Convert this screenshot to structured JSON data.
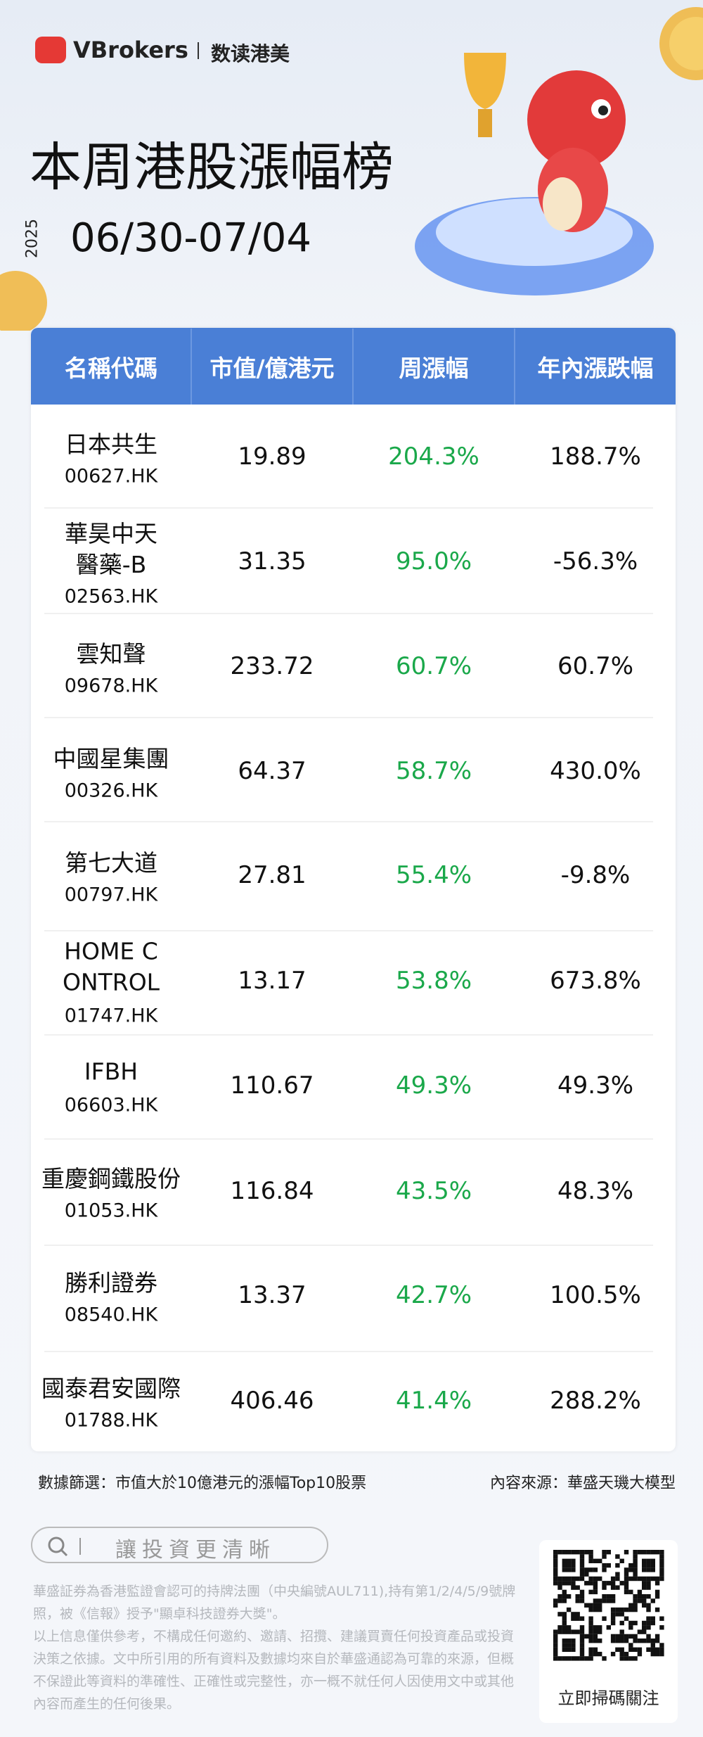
{
  "header": {
    "brand": "VBrokers",
    "brand_sub": "数读港美",
    "title": "本周港股漲幅榜",
    "year": "2025",
    "date_range": "06/30-07/04"
  },
  "table": {
    "columns": [
      "名稱代碼",
      "市值/億港元",
      "周漲幅",
      "年內漲跌幅"
    ],
    "rows": [
      {
        "name_lines": [
          "日本共生"
        ],
        "code": "00627.HK",
        "market_cap": "19.89",
        "weekly": "204.3%",
        "ytd": "188.7%"
      },
      {
        "name_lines": [
          "華昊中天",
          "醫藥-B"
        ],
        "code": "02563.HK",
        "market_cap": "31.35",
        "weekly": "95.0%",
        "ytd": "-56.3%"
      },
      {
        "name_lines": [
          "雲知聲"
        ],
        "code": "09678.HK",
        "market_cap": "233.72",
        "weekly": "60.7%",
        "ytd": "60.7%"
      },
      {
        "name_lines": [
          "中國星集團"
        ],
        "code": "00326.HK",
        "market_cap": "64.37",
        "weekly": "58.7%",
        "ytd": "430.0%"
      },
      {
        "name_lines": [
          "第七大道"
        ],
        "code": "00797.HK",
        "market_cap": "27.81",
        "weekly": "55.4%",
        "ytd": "-9.8%"
      },
      {
        "name_lines": [
          "HOME C",
          "ONTROL"
        ],
        "code": "01747.HK",
        "market_cap": "13.17",
        "weekly": "53.8%",
        "ytd": "673.8%"
      },
      {
        "name_lines": [
          "IFBH"
        ],
        "code": "06603.HK",
        "market_cap": "110.67",
        "weekly": "49.3%",
        "ytd": "49.3%"
      },
      {
        "name_lines": [
          "重慶鋼鐵股份"
        ],
        "code": "01053.HK",
        "market_cap": "116.84",
        "weekly": "43.5%",
        "ytd": "48.3%"
      },
      {
        "name_lines": [
          "勝利證券"
        ],
        "code": "08540.HK",
        "market_cap": "13.37",
        "weekly": "42.7%",
        "ytd": "100.5%"
      },
      {
        "name_lines": [
          "國泰君安國際"
        ],
        "code": "01788.HK",
        "market_cap": "406.46",
        "weekly": "41.4%",
        "ytd": "288.2%"
      }
    ]
  },
  "footer": {
    "filter_note": "數據篩選：市值大於10億港元的漲幅Top10股票",
    "source_note": "內容來源：華盛天璣大模型",
    "search_text": "讓投資更清晰",
    "qr_caption": "立即掃碼關注",
    "disclaimer": [
      "華盛証券為香港監證會認可的持牌法團（中央編號AUL711),持有第1/2/4/5/9號牌照，被《信報》授予\"顯卓科技證券大獎\"。",
      "以上信息僅供參考，不構成任何邀約、邀請、招攬、建議買賣任何投資產品或投資決策之依據。文中所引用的所有資料及數據均來自於華盛通認為可靠的來源，但概不保證此等資料的準確性、正確性或完整性，亦一概不就任何人因使用文中或其他內容而產生的任何後果。"
    ]
  }
}
